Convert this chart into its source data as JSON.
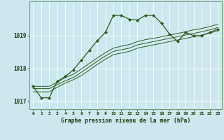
{
  "title": "Graphe pression niveau de la mer (hPa)",
  "bg_color": "#cce8ee",
  "grid_color": "#ffffff",
  "line_color": "#2d5a1b",
  "marker_color": "#2d5a1b",
  "label_color": "#1a3d0a",
  "hours": [
    0,
    1,
    2,
    3,
    4,
    5,
    6,
    7,
    8,
    9,
    10,
    11,
    12,
    13,
    14,
    15,
    16,
    17,
    18,
    19,
    20,
    21,
    22,
    23
  ],
  "pressure_main": [
    1017.45,
    1017.1,
    1017.1,
    1017.6,
    1017.75,
    1017.95,
    1018.25,
    1018.55,
    1018.85,
    1019.1,
    1019.62,
    1019.62,
    1019.5,
    1019.48,
    1019.62,
    1019.62,
    1019.38,
    1019.05,
    1018.82,
    1019.1,
    1019.0,
    1019.0,
    1019.1,
    1019.2
  ],
  "pressure_line2": [
    1017.45,
    1017.45,
    1017.45,
    1017.58,
    1017.72,
    1017.82,
    1017.98,
    1018.15,
    1018.32,
    1018.48,
    1018.62,
    1018.68,
    1018.73,
    1018.82,
    1018.88,
    1018.92,
    1018.97,
    1019.02,
    1019.07,
    1019.12,
    1019.18,
    1019.22,
    1019.28,
    1019.35
  ],
  "pressure_line3": [
    1017.38,
    1017.38,
    1017.38,
    1017.5,
    1017.62,
    1017.72,
    1017.88,
    1018.05,
    1018.22,
    1018.38,
    1018.52,
    1018.57,
    1018.62,
    1018.72,
    1018.77,
    1018.82,
    1018.87,
    1018.92,
    1018.97,
    1019.02,
    1019.07,
    1019.12,
    1019.18,
    1019.25
  ],
  "pressure_line4": [
    1017.28,
    1017.28,
    1017.28,
    1017.42,
    1017.55,
    1017.65,
    1017.78,
    1017.95,
    1018.12,
    1018.28,
    1018.42,
    1018.47,
    1018.52,
    1018.62,
    1018.67,
    1018.72,
    1018.77,
    1018.82,
    1018.87,
    1018.92,
    1018.97,
    1019.02,
    1019.08,
    1019.15
  ],
  "ylim": [
    1016.75,
    1020.05
  ],
  "yticks": [
    1017,
    1018,
    1019
  ],
  "xlim": [
    -0.5,
    23.5
  ],
  "figsize": [
    3.2,
    2.0
  ],
  "dpi": 100
}
